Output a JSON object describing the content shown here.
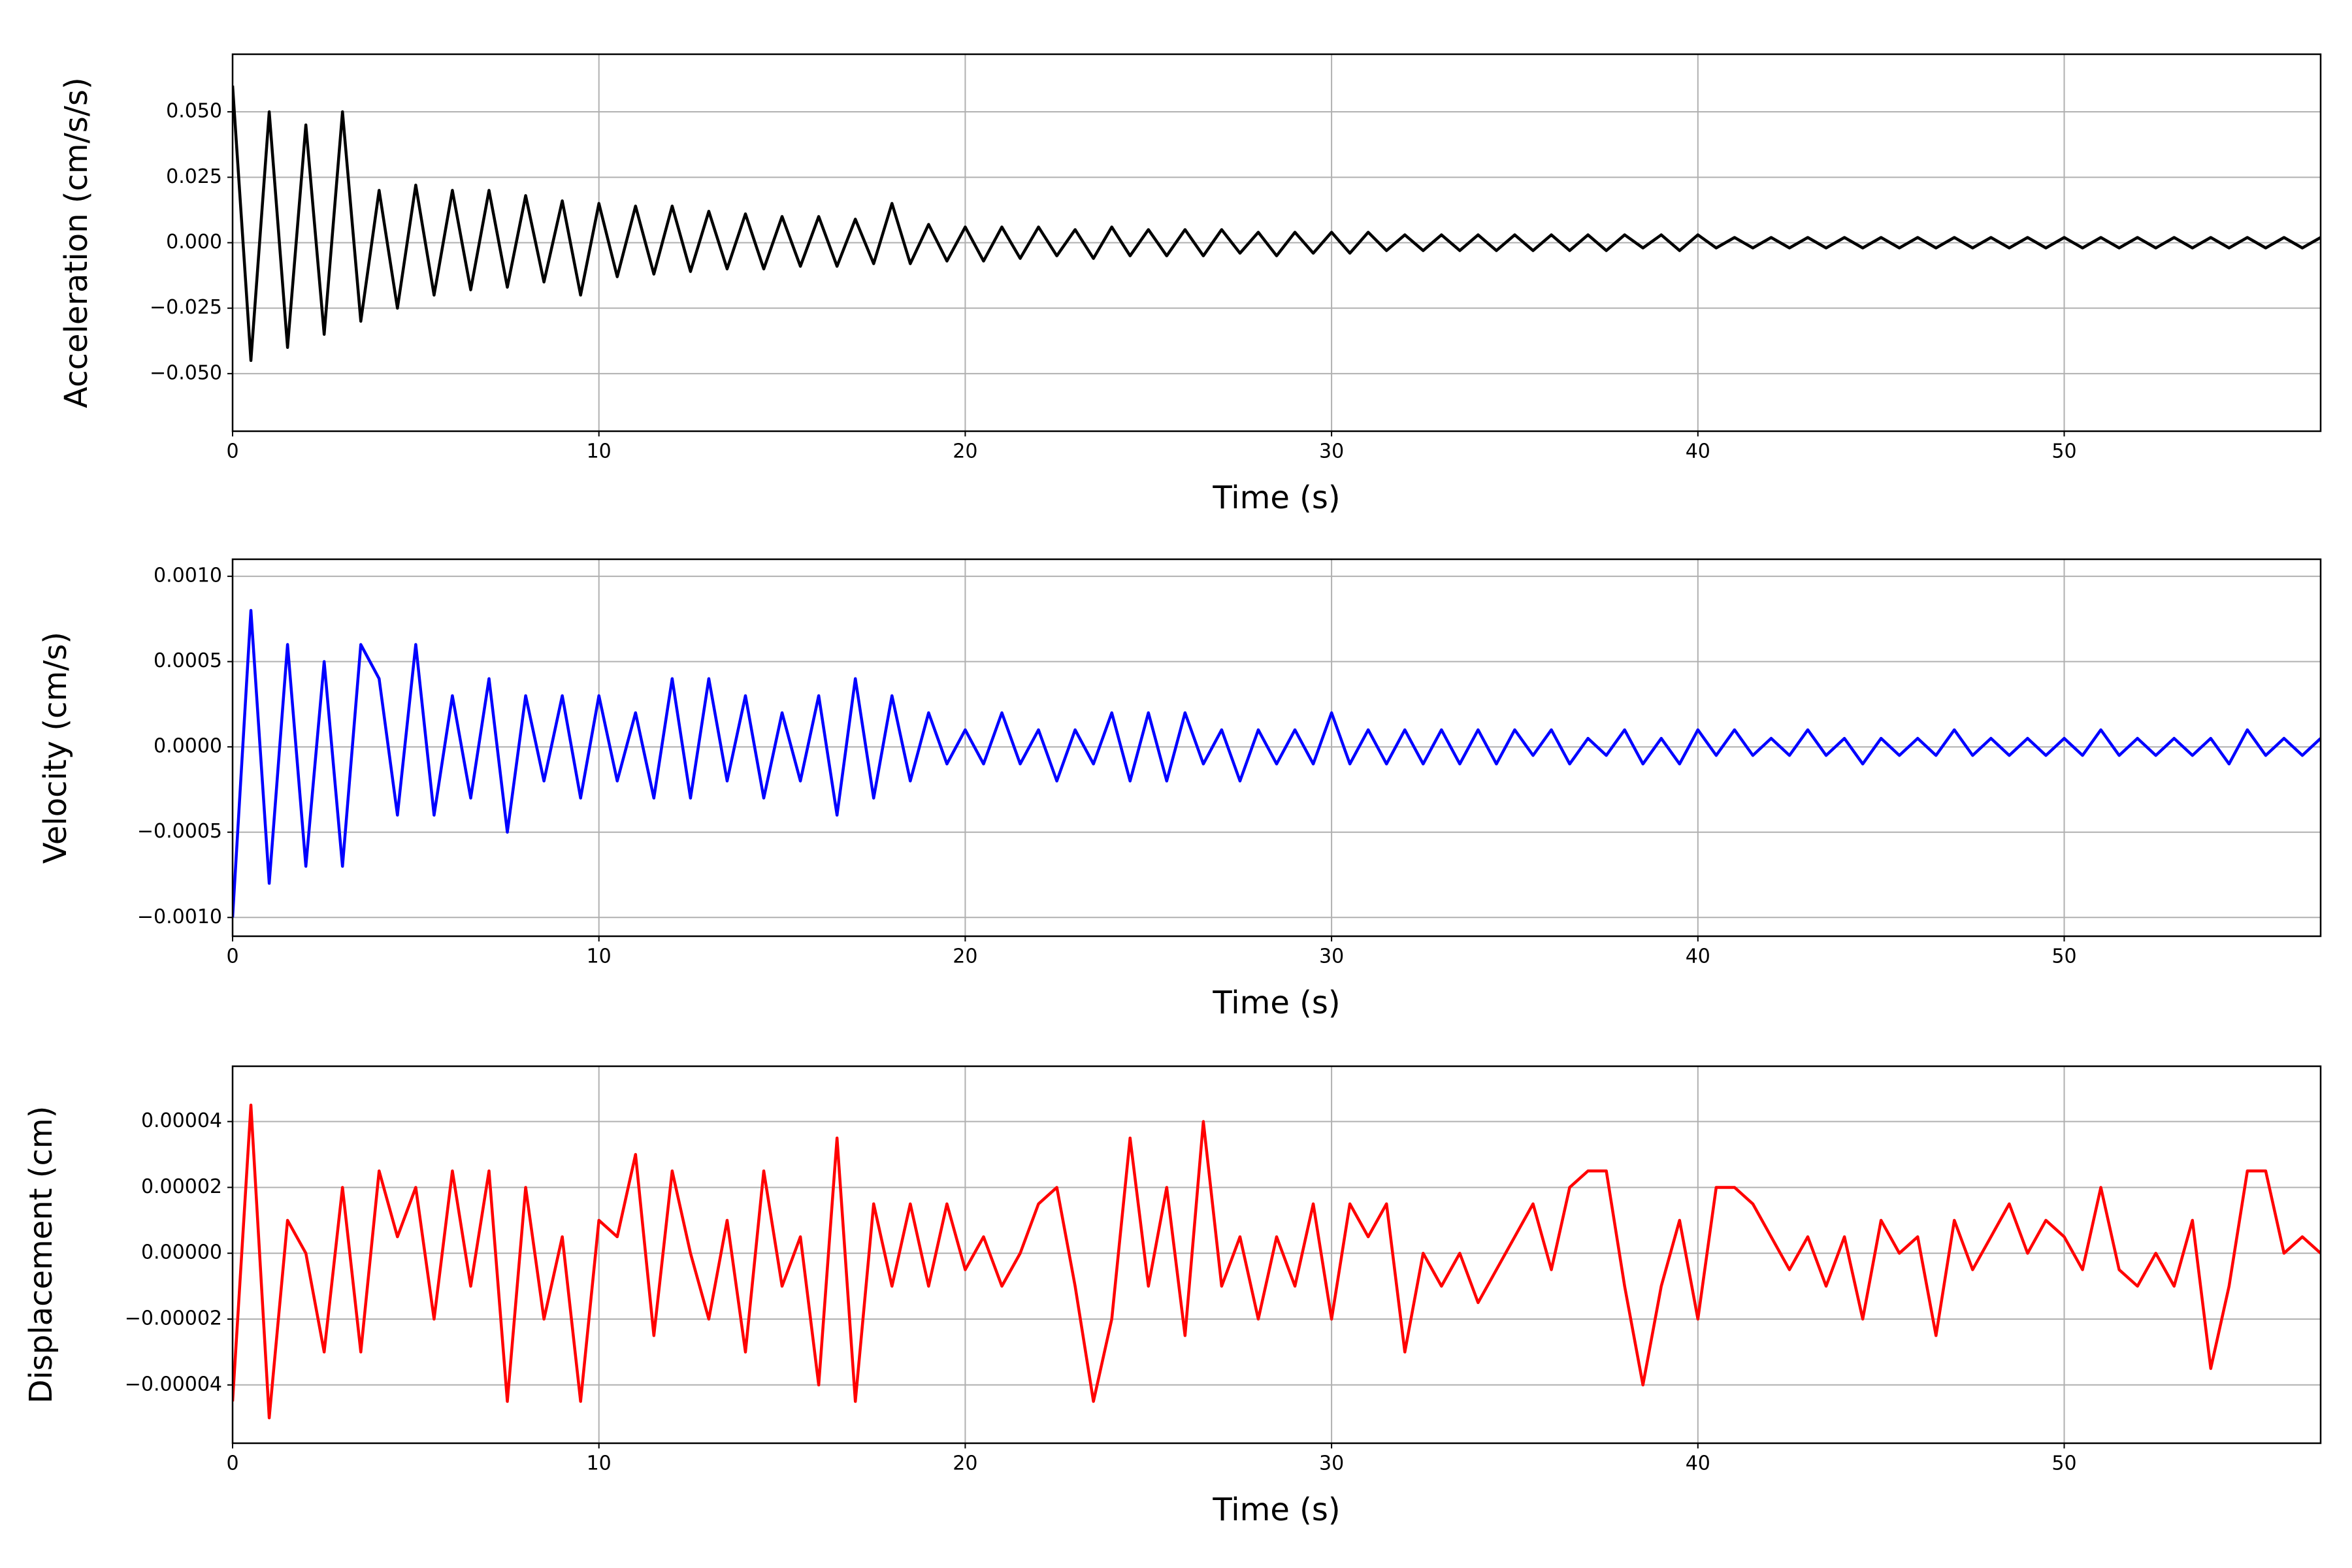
{
  "chart_data": [
    {
      "type": "line",
      "xlabel": "Time (s)",
      "ylabel": "Acceleration (cm/s/s)",
      "color": "#000000",
      "grid": true,
      "xlim": [
        0,
        57
      ],
      "xticks": [
        0,
        10,
        20,
        30,
        40,
        50
      ],
      "ylim": [
        -0.072,
        0.072
      ],
      "yticks": [
        {
          "value": -0.05,
          "label": "−0.050"
        },
        {
          "value": -0.025,
          "label": "−0.025"
        },
        {
          "value": 0,
          "label": "0.000"
        },
        {
          "value": 0.025,
          "label": "0.025"
        },
        {
          "value": 0.05,
          "label": "0.050"
        }
      ],
      "x": [
        0,
        0.5,
        1,
        1.5,
        2,
        2.5,
        3,
        3.5,
        4,
        4.5,
        5,
        5.5,
        6,
        6.5,
        7,
        7.5,
        8,
        8.5,
        9,
        9.5,
        10,
        10.5,
        11,
        11.5,
        12,
        12.5,
        13,
        13.5,
        14,
        14.5,
        15,
        15.5,
        16,
        16.5,
        17,
        17.5,
        18,
        18.5,
        19,
        19.5,
        20,
        20.5,
        21,
        21.5,
        22,
        22.5,
        23,
        23.5,
        24,
        24.5,
        25,
        25.5,
        26,
        26.5,
        27,
        27.5,
        28,
        28.5,
        29,
        29.5,
        30,
        30.5,
        31,
        31.5,
        32,
        32.5,
        33,
        33.5,
        34,
        34.5,
        35,
        35.5,
        36,
        36.5,
        37,
        37.5,
        38,
        38.5,
        39,
        39.5,
        40,
        40.5,
        41,
        41.5,
        42,
        42.5,
        43,
        43.5,
        44,
        44.5,
        45,
        45.5,
        46,
        46.5,
        47,
        47.5,
        48,
        48.5,
        49,
        49.5,
        50,
        50.5,
        51,
        51.5,
        52,
        52.5,
        53,
        53.5,
        54,
        54.5,
        55,
        55.5,
        56,
        56.5,
        57
      ],
      "values": [
        0.06,
        -0.045,
        0.05,
        -0.04,
        0.045,
        -0.035,
        0.05,
        -0.03,
        0.02,
        -0.025,
        0.022,
        -0.02,
        0.02,
        -0.018,
        0.02,
        -0.017,
        0.018,
        -0.015,
        0.016,
        -0.02,
        0.015,
        -0.013,
        0.014,
        -0.012,
        0.014,
        -0.011,
        0.012,
        -0.01,
        0.011,
        -0.01,
        0.01,
        -0.009,
        0.01,
        -0.009,
        0.009,
        -0.008,
        0.015,
        -0.008,
        0.007,
        -0.007,
        0.006,
        -0.007,
        0.006,
        -0.006,
        0.006,
        -0.005,
        0.005,
        -0.006,
        0.006,
        -0.005,
        0.005,
        -0.005,
        0.005,
        -0.005,
        0.005,
        -0.004,
        0.004,
        -0.005,
        0.004,
        -0.004,
        0.004,
        -0.004,
        0.004,
        -0.003,
        0.003,
        -0.003,
        0.003,
        -0.003,
        0.003,
        -0.003,
        0.003,
        -0.003,
        0.003,
        -0.003,
        0.003,
        -0.003,
        0.003,
        -0.002,
        0.003,
        -0.003,
        0.003,
        -0.002,
        0.002,
        -0.002,
        0.002,
        -0.002,
        0.002,
        -0.002,
        0.002,
        -0.002,
        0.002,
        -0.002,
        0.002,
        -0.002,
        0.002,
        -0.002,
        0.002,
        -0.002,
        0.002,
        -0.002,
        0.002,
        -0.002,
        0.002,
        -0.002,
        0.002,
        -0.002,
        0.002,
        -0.002,
        0.002,
        -0.002,
        0.002,
        -0.002,
        0.002,
        -0.002,
        0.002
      ]
    },
    {
      "type": "line",
      "xlabel": "Time (s)",
      "ylabel": "Velocity (cm/s)",
      "color": "#0000ff",
      "grid": true,
      "xlim": [
        0,
        57
      ],
      "xticks": [
        0,
        10,
        20,
        30,
        40,
        50
      ],
      "ylim": [
        -0.00111,
        0.0011
      ],
      "yticks": [
        {
          "value": -0.001,
          "label": "−0.0010"
        },
        {
          "value": -0.0005,
          "label": "−0.0005"
        },
        {
          "value": 0,
          "label": "0.0000"
        },
        {
          "value": 0.0005,
          "label": "0.0005"
        },
        {
          "value": 0.001,
          "label": "0.0010"
        }
      ],
      "x": [
        0,
        0.5,
        1,
        1.5,
        2,
        2.5,
        3,
        3.5,
        4,
        4.5,
        5,
        5.5,
        6,
        6.5,
        7,
        7.5,
        8,
        8.5,
        9,
        9.5,
        10,
        10.5,
        11,
        11.5,
        12,
        12.5,
        13,
        13.5,
        14,
        14.5,
        15,
        15.5,
        16,
        16.5,
        17,
        17.5,
        18,
        18.5,
        19,
        19.5,
        20,
        20.5,
        21,
        21.5,
        22,
        22.5,
        23,
        23.5,
        24,
        24.5,
        25,
        25.5,
        26,
        26.5,
        27,
        27.5,
        28,
        28.5,
        29,
        29.5,
        30,
        30.5,
        31,
        31.5,
        32,
        32.5,
        33,
        33.5,
        34,
        34.5,
        35,
        35.5,
        36,
        36.5,
        37,
        37.5,
        38,
        38.5,
        39,
        39.5,
        40,
        40.5,
        41,
        41.5,
        42,
        42.5,
        43,
        43.5,
        44,
        44.5,
        45,
        45.5,
        46,
        46.5,
        47,
        47.5,
        48,
        48.5,
        49,
        49.5,
        50,
        50.5,
        51,
        51.5,
        52,
        52.5,
        53,
        53.5,
        54,
        54.5,
        55,
        55.5,
        56,
        56.5,
        57
      ],
      "values": [
        -0.001,
        0.0008,
        -0.0008,
        0.0006,
        -0.0007,
        0.0005,
        -0.0007,
        0.0006,
        0.0004,
        -0.0004,
        0.0006,
        -0.0004,
        0.0003,
        -0.0003,
        0.0004,
        -0.0005,
        0.0003,
        -0.0002,
        0.0003,
        -0.0003,
        0.0003,
        -0.0002,
        0.0002,
        -0.0003,
        0.0004,
        -0.0003,
        0.0004,
        -0.0002,
        0.0003,
        -0.0003,
        0.0002,
        -0.0002,
        0.0003,
        -0.0004,
        0.0004,
        -0.0003,
        0.0003,
        -0.0002,
        0.0002,
        -0.0001,
        0.0001,
        -0.0001,
        0.0002,
        -0.0001,
        0.0001,
        -0.0002,
        0.0001,
        -0.0001,
        0.0002,
        -0.0002,
        0.0002,
        -0.0002,
        0.0002,
        -0.0001,
        0.0001,
        -0.0002,
        0.0001,
        -0.0001,
        0.0001,
        -0.0001,
        0.0002,
        -0.0001,
        0.0001,
        -0.0001,
        0.0001,
        -0.0001,
        0.0001,
        -0.0001,
        0.0001,
        -0.0001,
        0.0001,
        -5e-05,
        0.0001,
        -0.0001,
        5e-05,
        -5e-05,
        0.0001,
        -0.0001,
        5e-05,
        -0.0001,
        0.0001,
        -5e-05,
        0.0001,
        -5e-05,
        5e-05,
        -5e-05,
        0.0001,
        -5e-05,
        5e-05,
        -0.0001,
        5e-05,
        -5e-05,
        5e-05,
        -5e-05,
        0.0001,
        -5e-05,
        5e-05,
        -5e-05,
        5e-05,
        -5e-05,
        5e-05,
        -5e-05,
        0.0001,
        -5e-05,
        5e-05,
        -5e-05,
        5e-05,
        -5e-05,
        5e-05,
        -0.0001,
        0.0001,
        -5e-05,
        5e-05,
        -5e-05,
        5e-05
      ]
    },
    {
      "type": "line",
      "xlabel": "Time (s)",
      "ylabel": "Displacement (cm)",
      "color": "#ff0000",
      "grid": true,
      "xlim": [
        0,
        57
      ],
      "xticks": [
        0,
        10,
        20,
        30,
        40,
        50
      ],
      "ylim": [
        -5.77e-05,
        5.68e-05
      ],
      "yticks": [
        {
          "value": -4e-05,
          "label": "−0.00004"
        },
        {
          "value": -2e-05,
          "label": "−0.00002"
        },
        {
          "value": 0,
          "label": "0.00000"
        },
        {
          "value": 2e-05,
          "label": "0.00002"
        },
        {
          "value": 4e-05,
          "label": "0.00004"
        }
      ],
      "x": [
        0,
        0.5,
        1,
        1.5,
        2,
        2.5,
        3,
        3.5,
        4,
        4.5,
        5,
        5.5,
        6,
        6.5,
        7,
        7.5,
        8,
        8.5,
        9,
        9.5,
        10,
        10.5,
        11,
        11.5,
        12,
        12.5,
        13,
        13.5,
        14,
        14.5,
        15,
        15.5,
        16,
        16.5,
        17,
        17.5,
        18,
        18.5,
        19,
        19.5,
        20,
        20.5,
        21,
        21.5,
        22,
        22.5,
        23,
        23.5,
        24,
        24.5,
        25,
        25.5,
        26,
        26.5,
        27,
        27.5,
        28,
        28.5,
        29,
        29.5,
        30,
        30.5,
        31,
        31.5,
        32,
        32.5,
        33,
        33.5,
        34,
        34.5,
        35,
        35.5,
        36,
        36.5,
        37,
        37.5,
        38,
        38.5,
        39,
        39.5,
        40,
        40.5,
        41,
        41.5,
        42,
        42.5,
        43,
        43.5,
        44,
        44.5,
        45,
        45.5,
        46,
        46.5,
        47,
        47.5,
        48,
        48.5,
        49,
        49.5,
        50,
        50.5,
        51,
        51.5,
        52,
        52.5,
        53,
        53.5,
        54,
        54.5,
        55,
        55.5,
        56,
        56.5,
        57
      ],
      "values": [
        -4.5e-05,
        4.5e-05,
        -5e-05,
        1e-05,
        0,
        -3e-05,
        2e-05,
        -3e-05,
        2.5e-05,
        5e-06,
        2e-05,
        -2e-05,
        2.5e-05,
        -1e-05,
        2.5e-05,
        -4.5e-05,
        2e-05,
        -2e-05,
        5e-06,
        -4.5e-05,
        1e-05,
        5e-06,
        3e-05,
        -2.5e-05,
        2.5e-05,
        0,
        -2e-05,
        1e-05,
        -3e-05,
        2.5e-05,
        -1e-05,
        5e-06,
        -4e-05,
        3.5e-05,
        -4.5e-05,
        1.5e-05,
        -1e-05,
        1.5e-05,
        -1e-05,
        1.5e-05,
        -5e-06,
        5e-06,
        -1e-05,
        0,
        1.5e-05,
        2e-05,
        -1e-05,
        -4.5e-05,
        -2e-05,
        3.5e-05,
        -1e-05,
        2e-05,
        -2.5e-05,
        4e-05,
        -1e-05,
        5e-06,
        -2e-05,
        5e-06,
        -1e-05,
        1.5e-05,
        -2e-05,
        1.5e-05,
        5e-06,
        1.5e-05,
        -3e-05,
        0,
        -1e-05,
        0,
        -1.5e-05,
        -5e-06,
        5e-06,
        1.5e-05,
        -5e-06,
        2e-05,
        2.5e-05,
        2.5e-05,
        -1e-05,
        -4e-05,
        -1e-05,
        1e-05,
        -2e-05,
        2e-05,
        2e-05,
        1.5e-05,
        5e-06,
        -5e-06,
        5e-06,
        -1e-05,
        5e-06,
        -2e-05,
        1e-05,
        0,
        5e-06,
        -2.5e-05,
        1e-05,
        -5e-06,
        5e-06,
        1.5e-05,
        0,
        1e-05,
        5e-06,
        -5e-06,
        2e-05,
        -5e-06,
        -1e-05,
        0,
        -1e-05,
        1e-05,
        -3.5e-05,
        -1e-05,
        2.5e-05,
        2.5e-05,
        0,
        5e-06,
        0
      ]
    }
  ]
}
